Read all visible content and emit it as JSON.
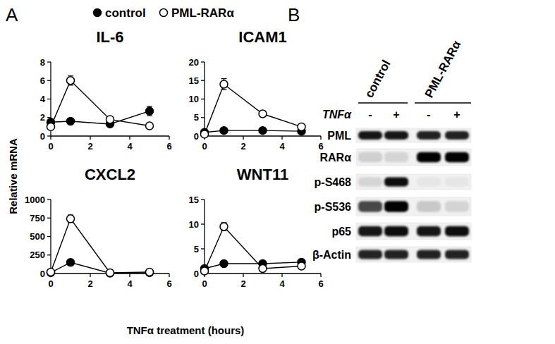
{
  "figure": {
    "panel_labels": [
      "A",
      "B"
    ],
    "y_label": "Relative mRNA",
    "x_label": "TNFα treatment (hours)"
  },
  "chart_data": [
    {
      "type": "line",
      "title": "IL-6",
      "x": [
        0,
        1,
        3,
        5
      ],
      "xlim": [
        0,
        6
      ],
      "xticks": [
        0,
        2,
        4,
        6
      ],
      "ylim": [
        0,
        8
      ],
      "yticks": [
        0,
        2,
        4,
        6,
        8
      ],
      "series": [
        {
          "name": "control",
          "color": "#000000",
          "marker": "filled-circle",
          "values": [
            1.5,
            1.6,
            1.3,
            2.7
          ],
          "errors": [
            0.1,
            0.1,
            0.1,
            0.5
          ]
        },
        {
          "name": "PML-RARα",
          "color": "#000000",
          "marker": "open-circle",
          "values": [
            1.0,
            6.0,
            1.8,
            1.1
          ],
          "errors": [
            0.1,
            0.5,
            0.2,
            0.1
          ]
        }
      ]
    },
    {
      "type": "line",
      "title": "ICAM1",
      "x": [
        0,
        1,
        3,
        5
      ],
      "xlim": [
        0,
        6
      ],
      "xticks": [
        0,
        2,
        4,
        6
      ],
      "ylim": [
        0,
        20
      ],
      "yticks": [
        0,
        5,
        10,
        15,
        20
      ],
      "series": [
        {
          "name": "control",
          "color": "#000000",
          "marker": "filled-circle",
          "values": [
            1.0,
            1.5,
            1.5,
            1.3
          ],
          "errors": [
            0.1,
            0.2,
            0.1,
            0.1
          ]
        },
        {
          "name": "PML-RARα",
          "color": "#000000",
          "marker": "open-circle",
          "values": [
            0.5,
            14.0,
            6.0,
            2.5
          ],
          "errors": [
            0.1,
            1.5,
            0.5,
            0.2
          ]
        }
      ]
    },
    {
      "type": "line",
      "title": "CXCL2",
      "x": [
        0,
        1,
        3,
        5
      ],
      "xlim": [
        0,
        6
      ],
      "xticks": [
        0,
        2,
        4,
        6
      ],
      "ylim": [
        0,
        1000
      ],
      "yticks": [
        0,
        250,
        500,
        750,
        1000
      ],
      "series": [
        {
          "name": "control",
          "color": "#000000",
          "marker": "filled-circle",
          "values": [
            10,
            150,
            5,
            10
          ],
          "errors": [
            2,
            10,
            2,
            2
          ]
        },
        {
          "name": "PML-RARα",
          "color": "#000000",
          "marker": "open-circle",
          "values": [
            20,
            740,
            10,
            20
          ],
          "errors": [
            3,
            50,
            2,
            3
          ]
        }
      ]
    },
    {
      "type": "line",
      "title": "WNT11",
      "x": [
        0,
        1,
        3,
        5
      ],
      "xlim": [
        0,
        6
      ],
      "xticks": [
        0,
        2,
        4,
        6
      ],
      "ylim": [
        0,
        15
      ],
      "yticks": [
        0,
        5,
        10,
        15
      ],
      "series": [
        {
          "name": "control",
          "color": "#000000",
          "marker": "filled-circle",
          "values": [
            1.0,
            2.0,
            2.0,
            2.3
          ],
          "errors": [
            0.1,
            0.2,
            0.2,
            0.3
          ]
        },
        {
          "name": "PML-RARα",
          "color": "#000000",
          "marker": "open-circle",
          "values": [
            0.5,
            9.5,
            1.0,
            1.5
          ],
          "errors": [
            0.1,
            0.8,
            0.1,
            0.1
          ]
        }
      ]
    }
  ],
  "blot": {
    "groups": [
      "control",
      "PML-RARα"
    ],
    "treatment_label": "TNFα",
    "treatment": [
      "-",
      "+",
      "-",
      "+"
    ],
    "rows": [
      {
        "label": "PML",
        "bands": [
          0.9,
          0.9,
          0.85,
          0.85
        ]
      },
      {
        "label": "RARα",
        "bands": [
          0.12,
          0.1,
          1.0,
          1.0
        ]
      },
      {
        "label": "p-S468",
        "bands": [
          0.1,
          0.95,
          0.02,
          0.02
        ]
      },
      {
        "label": "p-S536",
        "bands": [
          0.7,
          1.0,
          0.15,
          0.1
        ]
      },
      {
        "label": "p65",
        "bands": [
          0.9,
          0.95,
          0.9,
          0.95
        ]
      },
      {
        "label": "β-Actin",
        "bands": [
          0.85,
          0.85,
          0.85,
          0.85
        ]
      }
    ]
  }
}
